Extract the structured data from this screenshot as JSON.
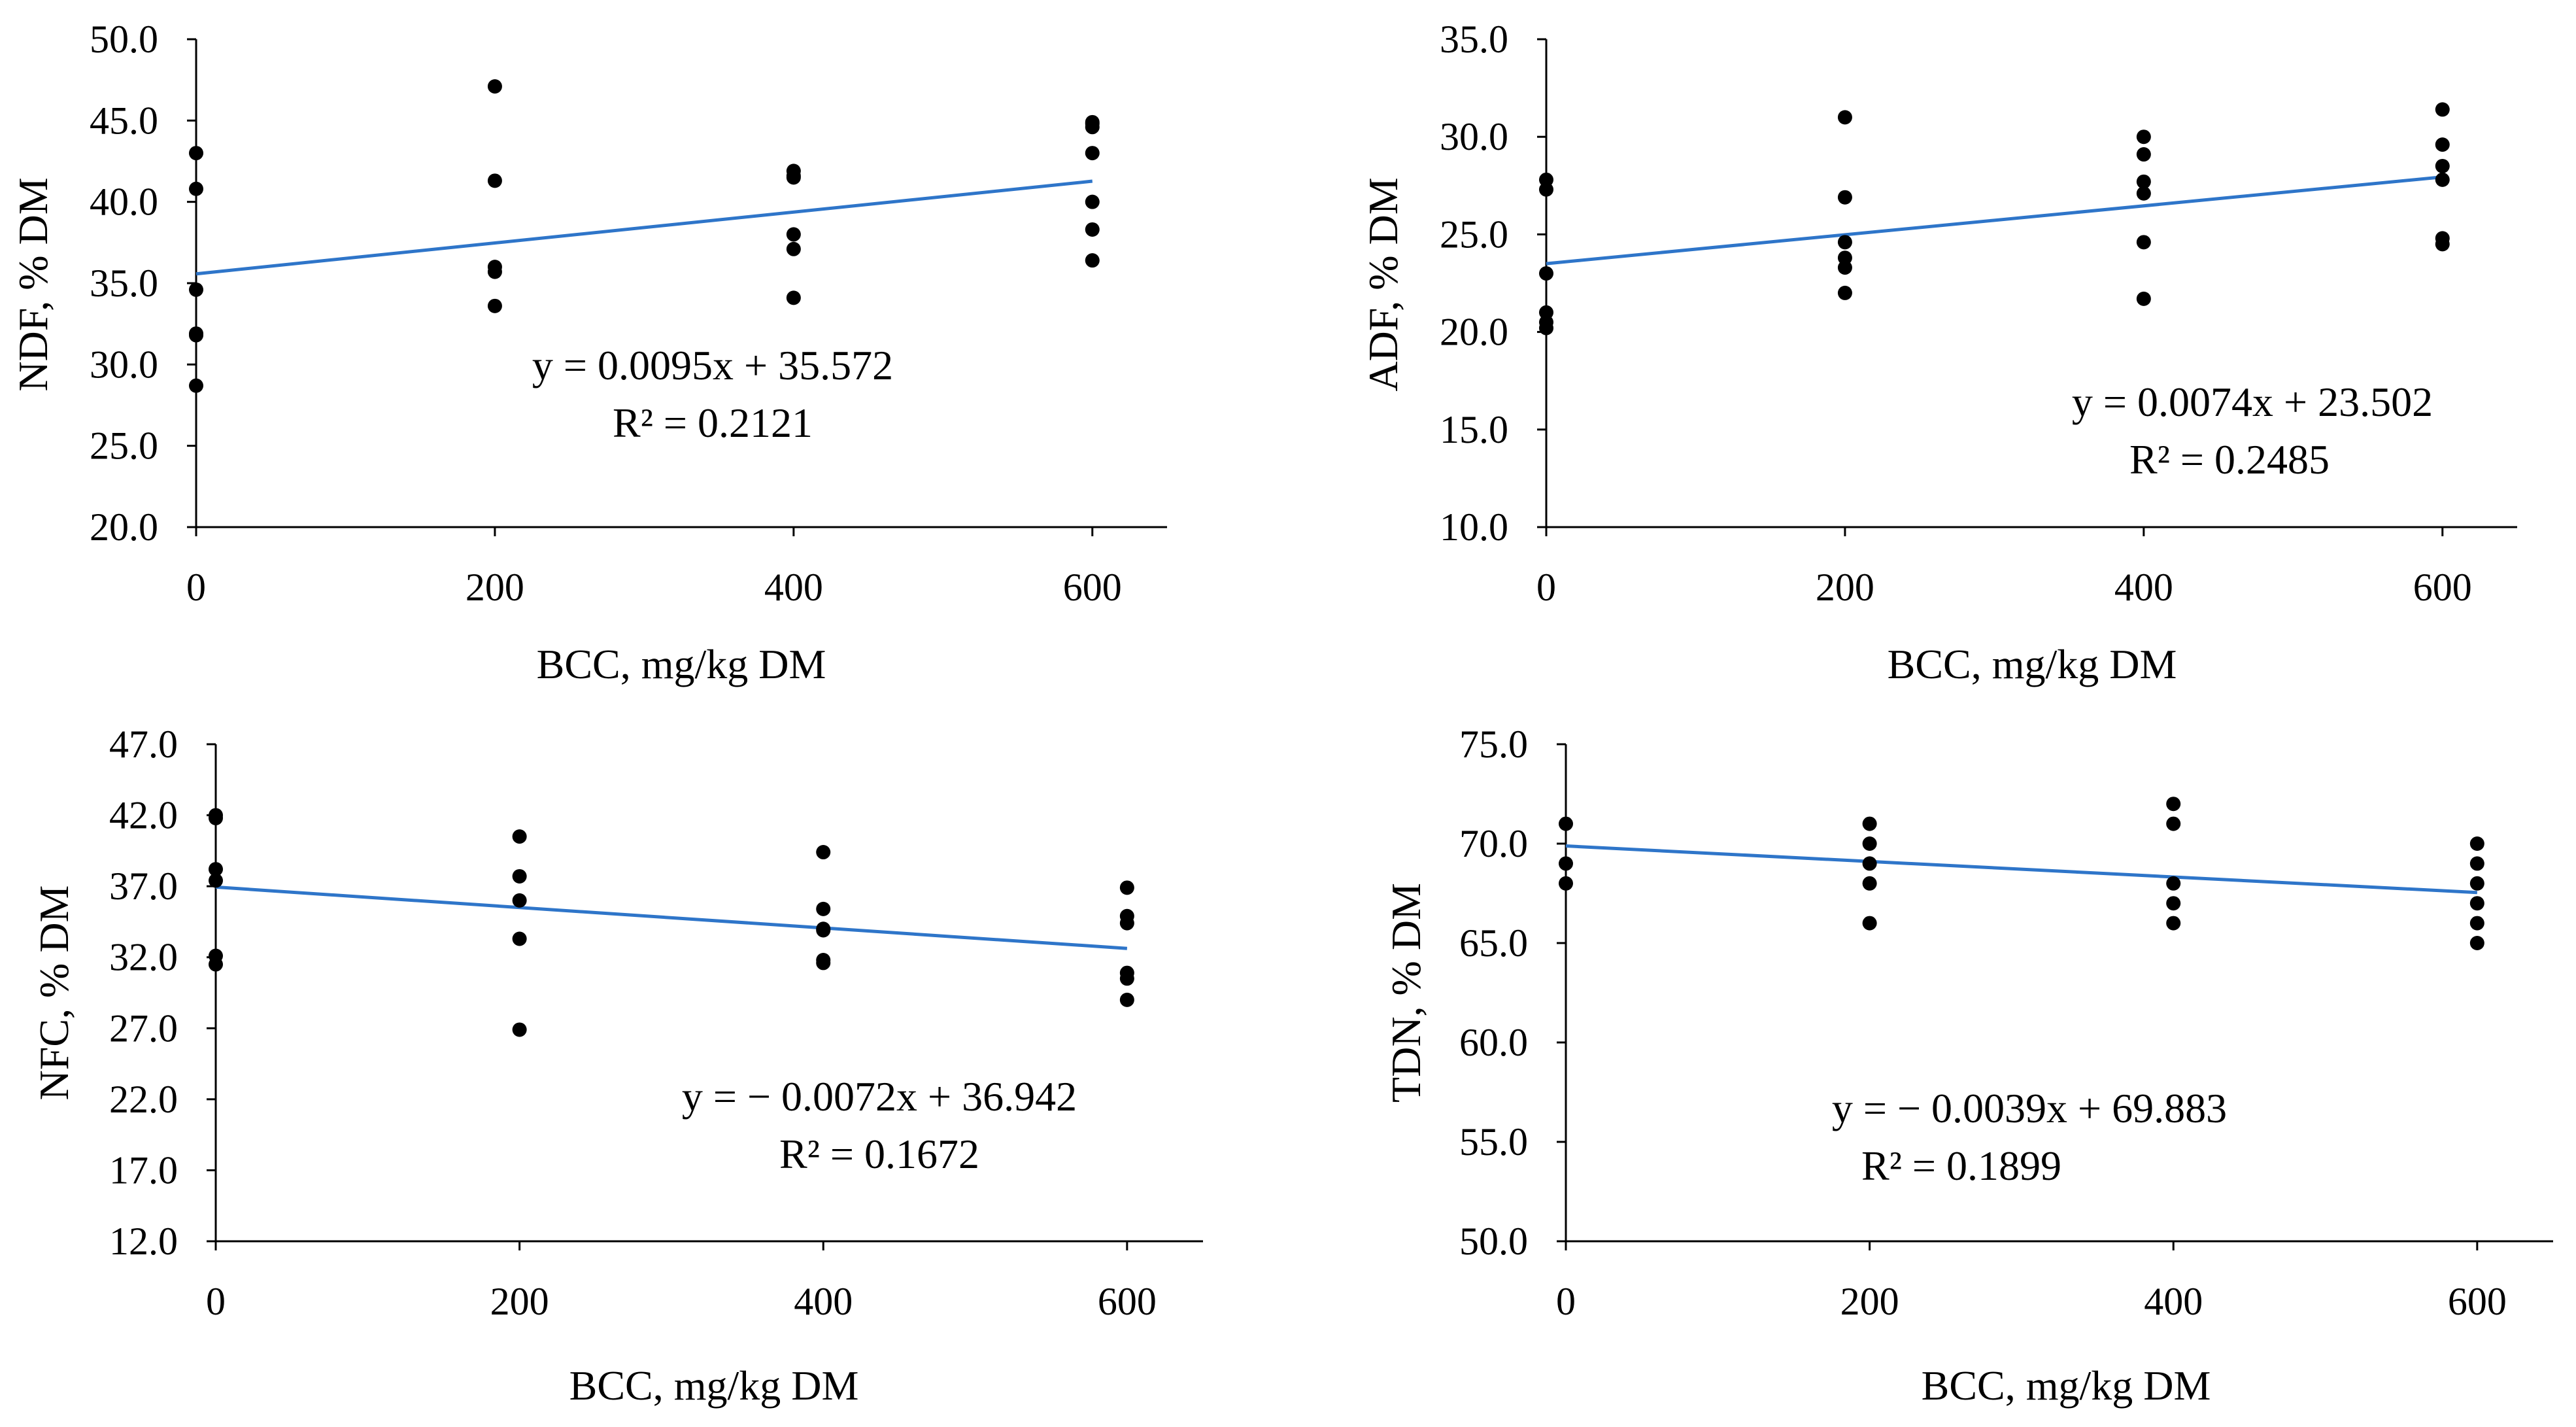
{
  "figure": {
    "background": "#ffffff",
    "marker_color": "#000000",
    "axis_color": "#000000",
    "trend_color": "#2e75c9"
  },
  "chart_data": [
    {
      "type": "scatter",
      "xlabel": "BCC, mg/kg DM",
      "ylabel": "NDF, % DM",
      "xlim": [
        0,
        650
      ],
      "ylim": [
        20,
        50
      ],
      "xticks": [
        0,
        200,
        400,
        600
      ],
      "xtick_labels": [
        "0",
        "200",
        "400",
        "600"
      ],
      "yticks": [
        20,
        25,
        30,
        35,
        40,
        45,
        50
      ],
      "ytick_labels": [
        "20.0",
        "25.0",
        "30.0",
        "35.0",
        "40.0",
        "45.0",
        "50.0"
      ],
      "grid": false,
      "legend": "none",
      "x": [
        0,
        0,
        0,
        0,
        0,
        0,
        200,
        200,
        200,
        200,
        200,
        400,
        400,
        400,
        400,
        400,
        400,
        600,
        600,
        600,
        600,
        600,
        600,
        600
      ],
      "y": [
        43.0,
        40.8,
        34.6,
        31.8,
        31.9,
        28.7,
        47.1,
        41.3,
        36.0,
        35.7,
        33.6,
        41.9,
        41.6,
        38.0,
        37.1,
        34.1,
        41.5,
        44.9,
        44.6,
        43.0,
        40.0,
        38.3,
        36.4,
        44.8
      ],
      "trendline": {
        "slope": 0.0095,
        "intercept": 35.572,
        "x_range": [
          0,
          600
        ]
      },
      "equation": "y = 0.0095x + 35.572",
      "r2": "R² = 0.2121"
    },
    {
      "type": "scatter",
      "xlabel": "BCC, mg/kg DM",
      "ylabel": "ADF, % DM",
      "xlim": [
        0,
        650
      ],
      "ylim": [
        10,
        35
      ],
      "xticks": [
        0,
        200,
        400,
        600
      ],
      "xtick_labels": [
        "0",
        "200",
        "400",
        "600"
      ],
      "yticks": [
        10,
        15,
        20,
        25,
        30,
        35
      ],
      "ytick_labels": [
        "10.0",
        "15.0",
        "20.0",
        "25.0",
        "30.0",
        "35.0"
      ],
      "grid": false,
      "legend": "none",
      "x": [
        0,
        0,
        0,
        0,
        0,
        0,
        200,
        200,
        200,
        200,
        200,
        200,
        400,
        400,
        400,
        400,
        400,
        400,
        600,
        600,
        600,
        600,
        600,
        600
      ],
      "y": [
        27.8,
        27.3,
        23.0,
        21.0,
        20.5,
        20.2,
        31.0,
        26.9,
        24.6,
        23.8,
        23.3,
        22.0,
        30.0,
        29.1,
        27.7,
        27.1,
        24.6,
        21.7,
        31.4,
        29.6,
        28.5,
        27.8,
        24.8,
        24.5
      ],
      "trendline": {
        "slope": 0.0074,
        "intercept": 23.502,
        "x_range": [
          0,
          600
        ]
      },
      "equation": "y = 0.0074x + 23.502",
      "r2": "R² = 0.2485"
    },
    {
      "type": "scatter",
      "xlabel": "BCC, mg/kg DM",
      "ylabel": "NFC, % DM",
      "xlim": [
        0,
        650
      ],
      "ylim": [
        12,
        47
      ],
      "xticks": [
        0,
        200,
        400,
        600
      ],
      "xtick_labels": [
        "0",
        "200",
        "400",
        "600"
      ],
      "yticks": [
        12,
        17,
        22,
        27,
        32,
        37,
        42,
        47
      ],
      "ytick_labels": [
        "12.0",
        "17.0",
        "22.0",
        "27.0",
        "32.0",
        "37.0",
        "42.0",
        "47.0"
      ],
      "grid": false,
      "legend": "none",
      "x": [
        0,
        0,
        0,
        0,
        0,
        0,
        200,
        200,
        200,
        200,
        200,
        400,
        400,
        400,
        400,
        400,
        400,
        600,
        600,
        600,
        600,
        600,
        600
      ],
      "y": [
        42.0,
        41.8,
        38.2,
        37.4,
        32.1,
        31.5,
        40.5,
        37.7,
        36.0,
        33.3,
        26.9,
        39.4,
        35.4,
        33.9,
        31.8,
        31.6,
        34.0,
        36.9,
        34.9,
        34.4,
        30.9,
        30.5,
        29.0
      ],
      "trendline": {
        "slope": -0.0072,
        "intercept": 36.942,
        "x_range": [
          0,
          600
        ]
      },
      "equation": "y = − 0.0072x + 36.942",
      "r2": "R² = 0.1672"
    },
    {
      "type": "scatter",
      "xlabel": "BCC, mg/kg DM",
      "ylabel": "TDN, % DM",
      "xlim": [
        0,
        650
      ],
      "ylim": [
        50,
        75
      ],
      "xticks": [
        0,
        200,
        400,
        600
      ],
      "xtick_labels": [
        "0",
        "200",
        "400",
        "600"
      ],
      "yticks": [
        50,
        55,
        60,
        65,
        70,
        75
      ],
      "ytick_labels": [
        "50.0",
        "55.0",
        "60.0",
        "65.0",
        "70.0",
        "75.0"
      ],
      "grid": false,
      "legend": "none",
      "x": [
        0,
        0,
        0,
        200,
        200,
        200,
        200,
        200,
        400,
        400,
        400,
        400,
        400,
        600,
        600,
        600,
        600,
        600,
        600
      ],
      "y": [
        71.0,
        69.0,
        68.0,
        71.0,
        70.0,
        69.0,
        68.0,
        66.0,
        72.0,
        71.0,
        68.0,
        67.0,
        66.0,
        70.0,
        69.0,
        68.0,
        67.0,
        66.0,
        65.0
      ],
      "trendline": {
        "slope": -0.0039,
        "intercept": 69.883,
        "x_range": [
          0,
          600
        ]
      },
      "equation": "y = − 0.0039x + 69.883",
      "r2": "R² = 0.1899"
    }
  ]
}
